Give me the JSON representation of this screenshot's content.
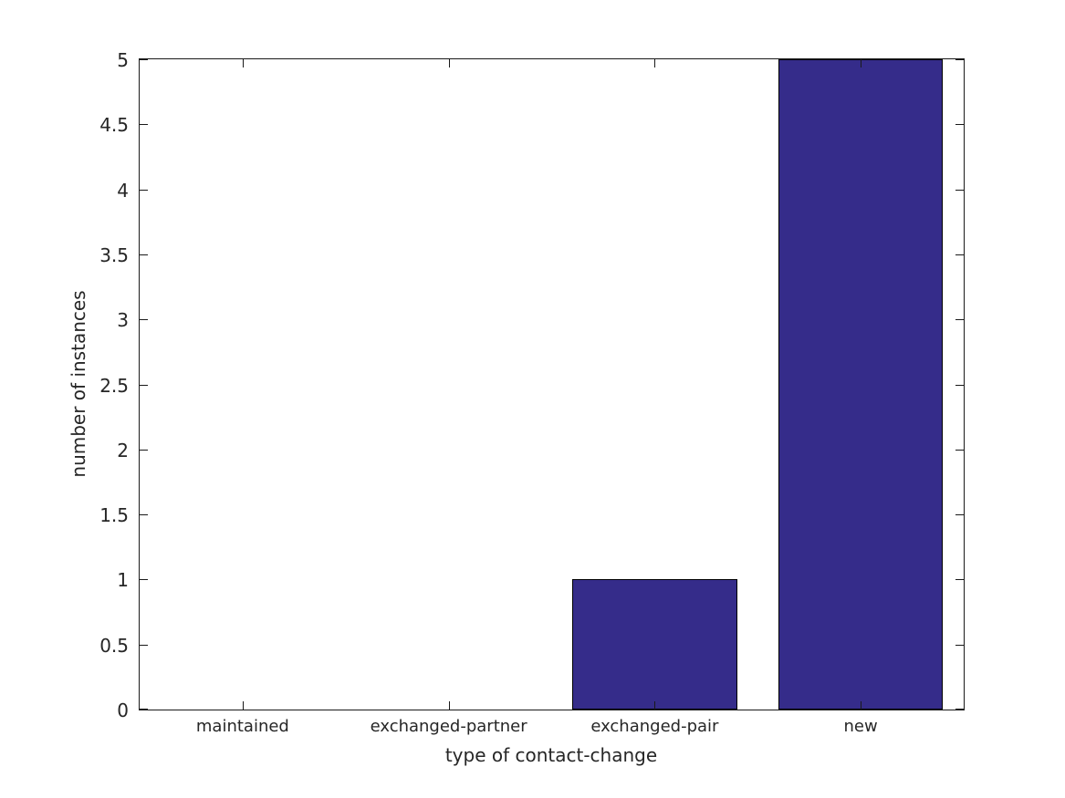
{
  "chart_data": {
    "type": "bar",
    "categories": [
      "maintained",
      "exchanged-partner",
      "exchanged-pair",
      "new"
    ],
    "values": [
      0,
      0,
      1,
      5
    ],
    "xlabel": "type of contact-change",
    "ylabel": "number of instances",
    "ylim": [
      0,
      5
    ],
    "yticks": [
      0,
      0.5,
      1,
      1.5,
      2,
      2.5,
      3,
      3.5,
      4,
      4.5,
      5
    ],
    "ytick_labels": [
      "0",
      "0.5",
      "1",
      "1.5",
      "2",
      "2.5",
      "3",
      "3.5",
      "4",
      "4.5",
      "5"
    ],
    "bar_width_fraction": 0.8,
    "grid": false,
    "legend": "none",
    "colors": {
      "bar_fill": "#352C8A",
      "bar_edge": "#000000",
      "axis": "#1a1a1a",
      "text": "#262626",
      "background": "#ffffff"
    }
  }
}
